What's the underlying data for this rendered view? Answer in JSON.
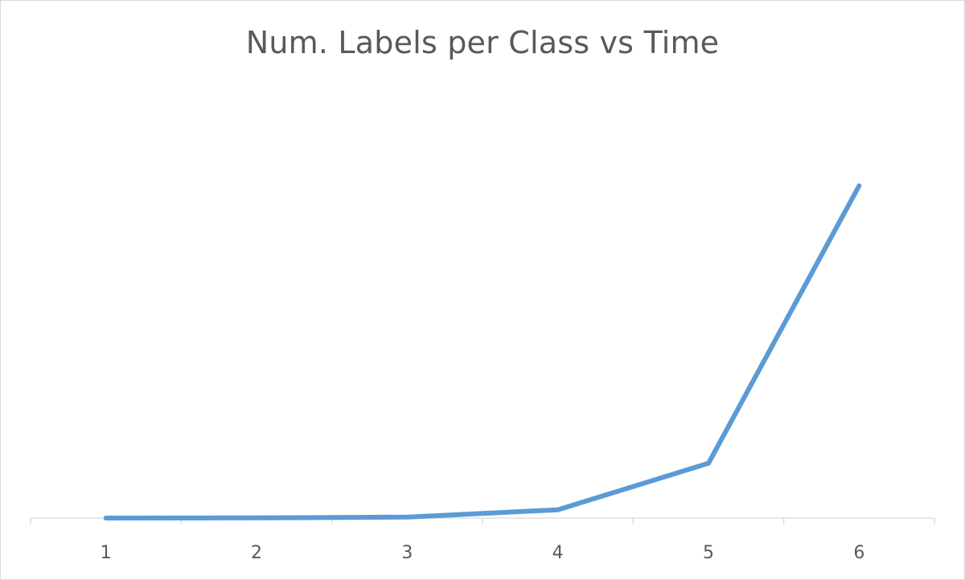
{
  "chart_data": {
    "type": "line",
    "title": "Num. Labels per Class vs Time",
    "xlabel": "",
    "ylabel": "",
    "categories": [
      "1",
      "2",
      "3",
      "4",
      "5",
      "6"
    ],
    "series": [
      {
        "values": [
          0,
          0.05,
          0.3,
          2.5,
          16.5,
          100
        ]
      }
    ],
    "ylim": [
      0,
      100
    ],
    "y_axis_visible": false,
    "grid": false,
    "legend": "none",
    "colors": {
      "line": "#5b9bd5",
      "axis": "#d9d9d9",
      "text": "#595959"
    }
  }
}
